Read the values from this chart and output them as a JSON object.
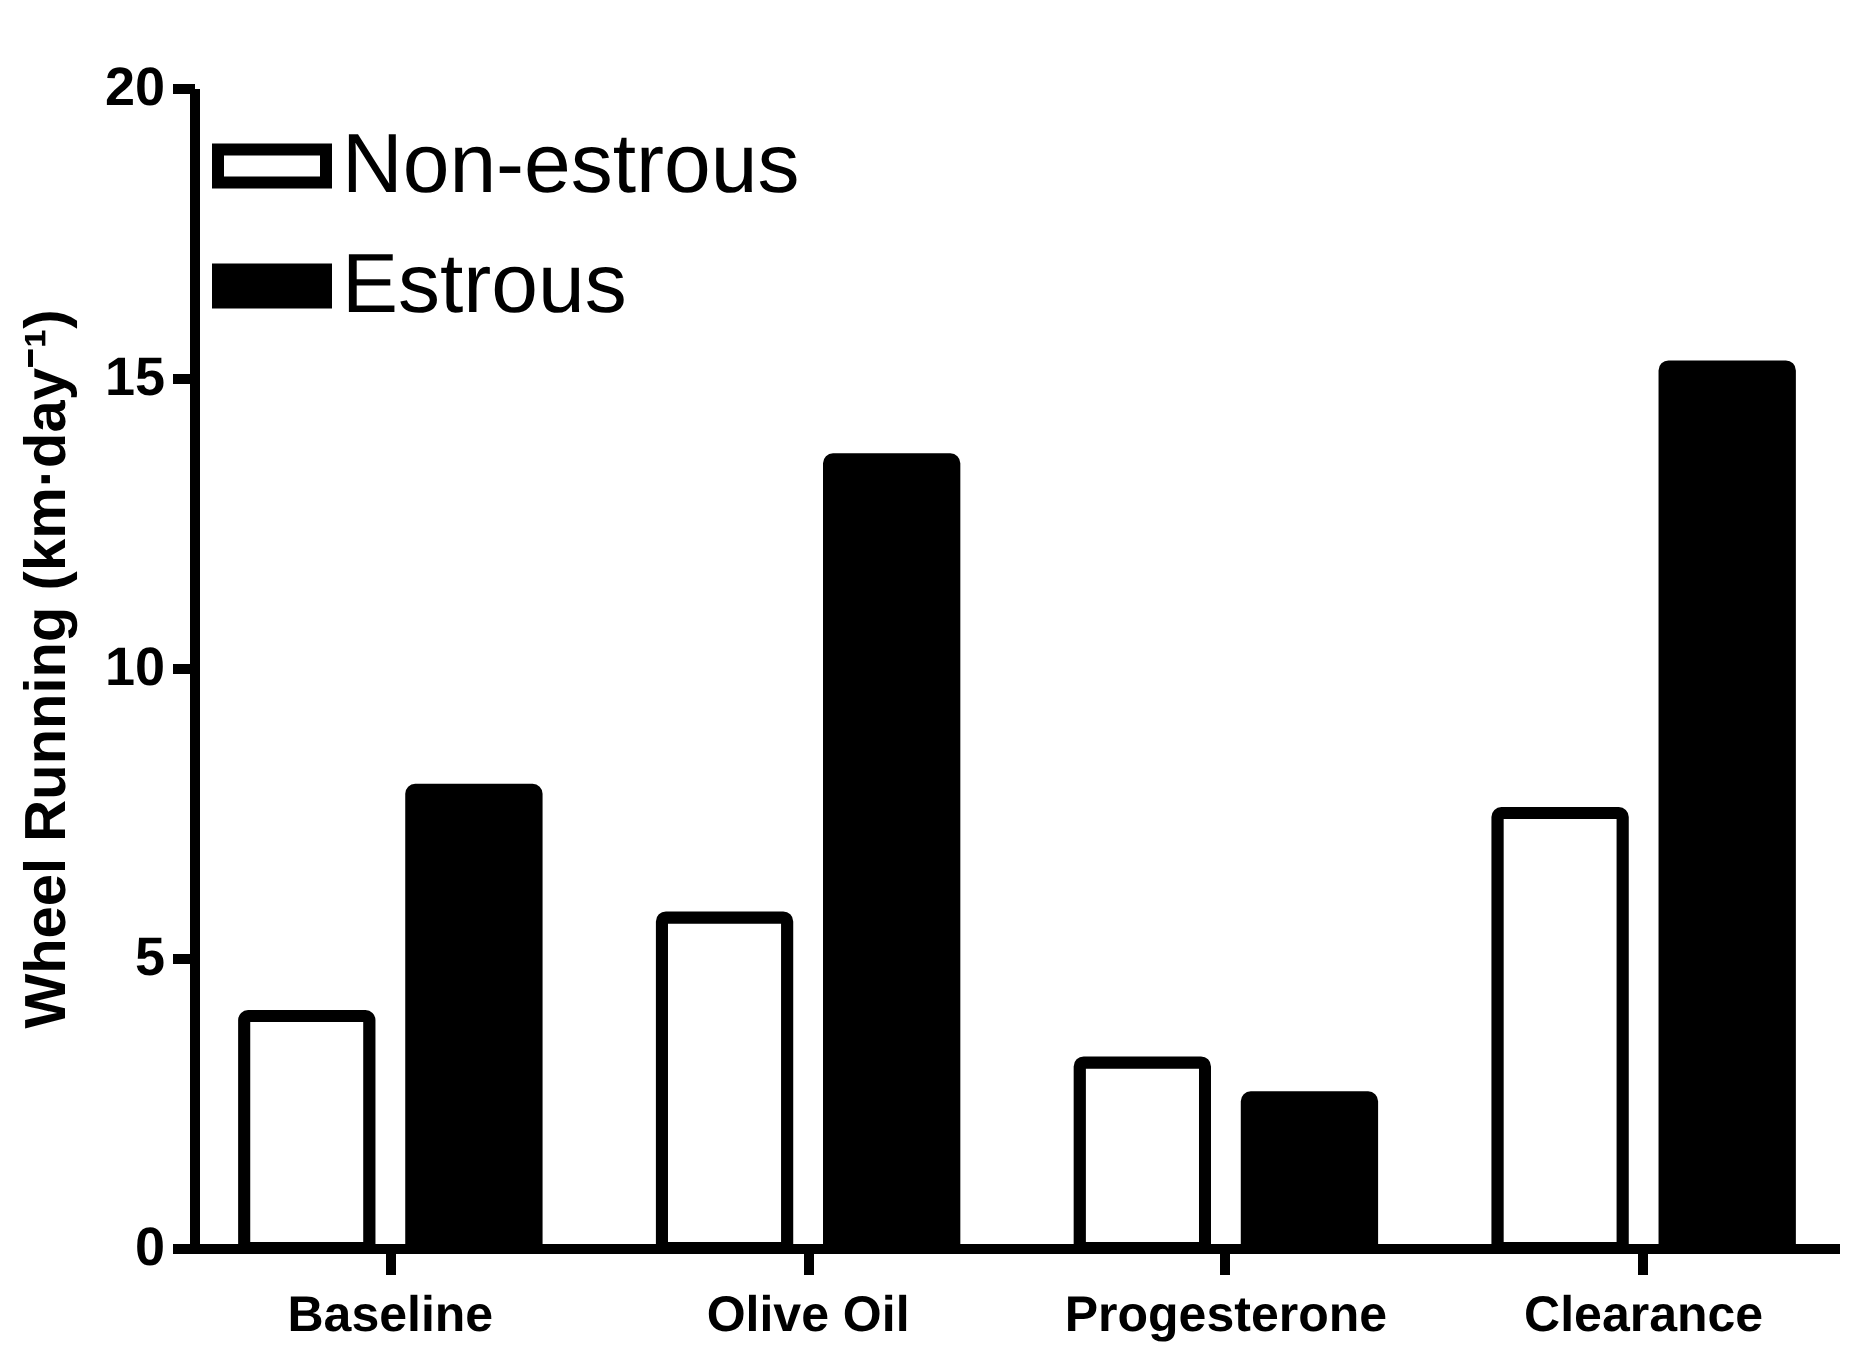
{
  "chart_data": {
    "type": "bar",
    "ylabel": "Wheel Running (km·day⁻¹)",
    "categories": [
      "Baseline",
      "Olive Oil",
      "Progesterone",
      "Clearance"
    ],
    "series": [
      {
        "name": "Non-estrous",
        "color": "#ffffff",
        "values": [
          4.0,
          5.7,
          3.2,
          7.5
        ]
      },
      {
        "name": "Estrous",
        "color": "#000000",
        "values": [
          7.9,
          13.6,
          2.6,
          15.2
        ]
      }
    ],
    "ylim": [
      0,
      20
    ],
    "yticks": [
      0,
      5,
      10,
      15,
      20
    ],
    "grid": false,
    "legend": "top left"
  }
}
